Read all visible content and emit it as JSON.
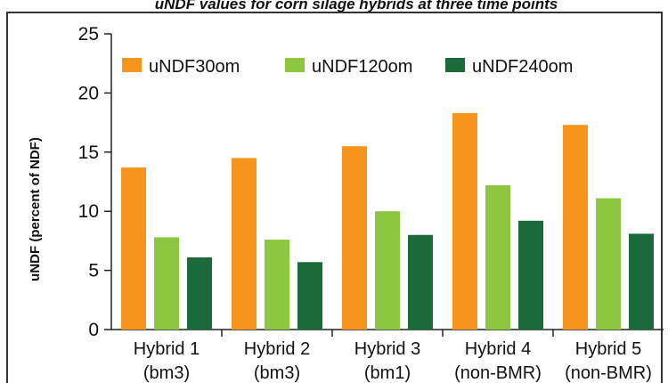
{
  "chart_data": {
    "type": "bar",
    "title": "uNDF values for corn silage hybrids at three time points",
    "ylabel": "uNDF (percent of NDF)",
    "xlabel": "",
    "ylim": [
      0,
      25
    ],
    "yticks": [
      0,
      5,
      10,
      15,
      20,
      25
    ],
    "grid": false,
    "legend_position": "top",
    "categories": [
      [
        "Hybrid 1",
        "(bm3)"
      ],
      [
        "Hybrid 2",
        "(bm3)"
      ],
      [
        "Hybrid 3",
        "(bm1)"
      ],
      [
        "Hybrid 4",
        "(non-BMR)"
      ],
      [
        "Hybrid 5",
        "(non-BMR)"
      ]
    ],
    "series": [
      {
        "name": "uNDF30om",
        "color": "#f7941d",
        "values": [
          13.7,
          14.5,
          15.5,
          18.3,
          17.3
        ]
      },
      {
        "name": "uNDF120om",
        "color": "#8dc63f",
        "values": [
          7.8,
          7.6,
          10.0,
          12.2,
          11.1
        ]
      },
      {
        "name": "uNDF240om",
        "color": "#1b6b3a",
        "values": [
          6.1,
          5.7,
          8.0,
          9.2,
          8.1
        ]
      }
    ]
  }
}
